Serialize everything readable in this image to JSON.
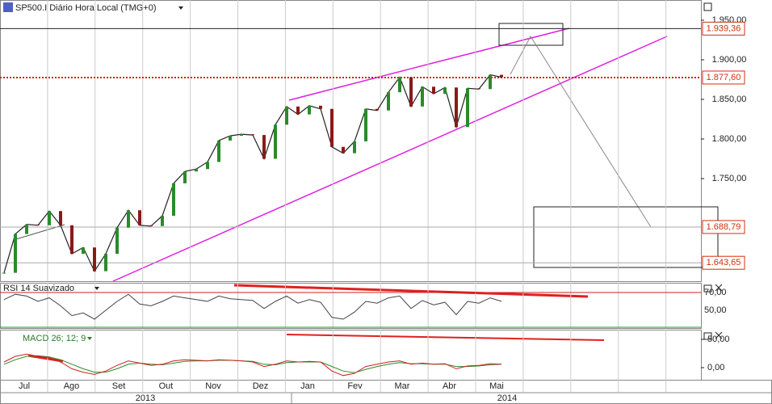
{
  "header": {
    "title": "SP500.I Diário Hora Local (TMG+0)"
  },
  "price_panel": {
    "ylim": [
      1620.4,
      1975.5
    ],
    "yticks": [
      {
        "value": 1950,
        "label": "1.950,00"
      },
      {
        "value": 1900,
        "label": "1.900,00"
      },
      {
        "value": 1850,
        "label": "1.850,00"
      },
      {
        "value": 1800,
        "label": "1.800,00"
      },
      {
        "value": 1750,
        "label": "1.750,00"
      }
    ],
    "price_tags": [
      {
        "value": 1939.36,
        "label": "1.939,36"
      },
      {
        "value": 1877.6,
        "label": "1.877,60"
      },
      {
        "value": 1688.79,
        "label": "1.688,79"
      },
      {
        "value": 1643.65,
        "label": "1.643,65"
      }
    ],
    "closes": [
      1631,
      1680,
      1692,
      1691,
      1709,
      1691,
      1655,
      1663,
      1633,
      1655,
      1688,
      1710,
      1691,
      1690,
      1703,
      1744,
      1759,
      1762,
      1771,
      1798,
      1804,
      1806,
      1805,
      1775,
      1818,
      1841,
      1831,
      1842,
      1838,
      1790,
      1782,
      1797,
      1838,
      1836,
      1859,
      1878,
      1841,
      1866,
      1857,
      1865,
      1815,
      1864,
      1863,
      1881,
      1878
    ]
  },
  "rsi_panel": {
    "title": "RSI 14 Suavizado",
    "ylim": [
      30,
      80.9
    ],
    "yticks": [
      {
        "value": 70,
        "label": "70,00"
      },
      {
        "value": 50,
        "label": "50,00"
      }
    ],
    "values": [
      62,
      68,
      66,
      60,
      64,
      55,
      44,
      47,
      40,
      50,
      60,
      68,
      57,
      55,
      60,
      66,
      64,
      62,
      60,
      66,
      63,
      62,
      61,
      52,
      60,
      66,
      58,
      62,
      59,
      42,
      40,
      48,
      60,
      58,
      64,
      66,
      52,
      61,
      56,
      59,
      45,
      60,
      58,
      64,
      60
    ]
  },
  "macd_panel": {
    "title": "MACD 26; 12; 9",
    "ylim": [
      -21.4,
      67.1
    ],
    "yticks": [
      {
        "value": 50,
        "label": "50,00"
      },
      {
        "value": 0,
        "label": "0,00"
      }
    ],
    "macd": [
      10,
      20,
      24,
      20,
      18,
      10,
      -2,
      -8,
      -12,
      -6,
      4,
      12,
      8,
      4,
      6,
      12,
      14,
      13,
      12,
      14,
      13,
      12,
      10,
      2,
      6,
      12,
      10,
      11,
      10,
      -6,
      -14,
      -10,
      2,
      6,
      10,
      12,
      6,
      8,
      6,
      7,
      -2,
      3,
      4,
      7,
      6
    ],
    "signal": [
      6,
      14,
      20,
      21,
      19,
      14,
      6,
      -2,
      -8,
      -8,
      -2,
      6,
      8,
      6,
      5,
      8,
      11,
      12,
      12,
      13,
      13,
      12,
      11,
      6,
      5,
      9,
      10,
      10,
      10,
      2,
      -6,
      -9,
      -3,
      2,
      6,
      9,
      7,
      7,
      6,
      6,
      2,
      2,
      3,
      5,
      6
    ]
  },
  "time_axis": {
    "months": [
      "Jul",
      "Ago",
      "Set",
      "Out",
      "Nov",
      "Dez",
      "Jan",
      "Fev",
      "Mar",
      "Abr",
      "Mai"
    ],
    "years": [
      "2013",
      "2014"
    ]
  }
}
